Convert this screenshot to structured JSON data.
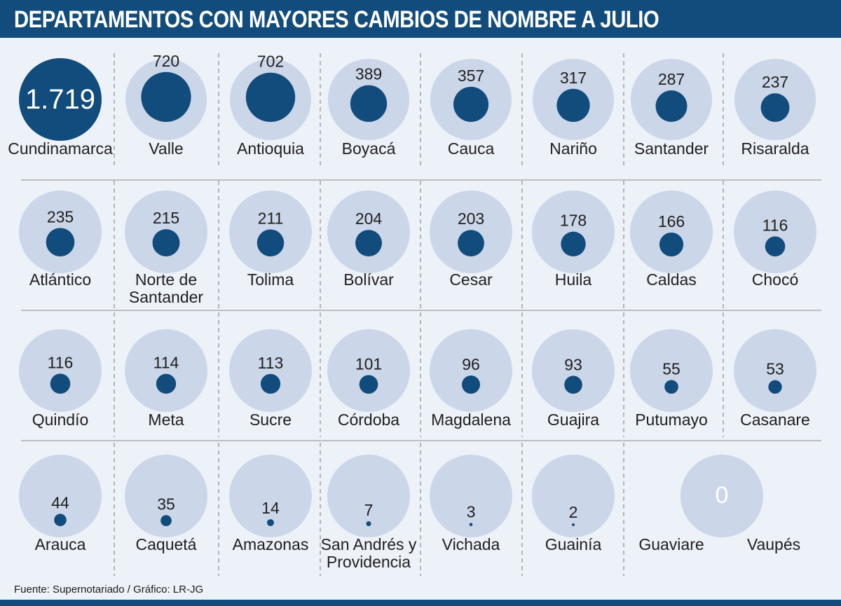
{
  "title": "DEPARTAMENTOS CON MAYORES CAMBIOS DE NOMBRE A JULIO",
  "source": "Fuente: Supernotariado / Gráfico: LR-JG",
  "colors": {
    "bar": "#124c7c",
    "background": "#edf1f8",
    "bubble_bg": "#cbd6e8",
    "bubble_value": "#124c7c"
  },
  "chart_data": {
    "type": "bubble",
    "max_value": 1719,
    "categories": [
      "Cundinamarca",
      "Valle",
      "Antioquia",
      "Boyacá",
      "Cauca",
      "Nariño",
      "Santander",
      "Risaralda",
      "Atlántico",
      "Norte de Santander",
      "Tolima",
      "Bolívar",
      "Cesar",
      "Huila",
      "Caldas",
      "Chocó",
      "Quindío",
      "Meta",
      "Sucre",
      "Córdoba",
      "Magdalena",
      "Guajira",
      "Putumayo",
      "Casanare",
      "Arauca",
      "Caquetá",
      "Amazonas",
      "San Andrés y Providencia",
      "Vichada",
      "Guainía",
      "Guaviare",
      "Vaupés"
    ],
    "values": [
      1719,
      720,
      702,
      389,
      357,
      317,
      287,
      237,
      235,
      215,
      211,
      204,
      203,
      178,
      166,
      116,
      116,
      114,
      113,
      101,
      96,
      93,
      55,
      53,
      44,
      35,
      14,
      7,
      3,
      2,
      0,
      0
    ],
    "value_labels": [
      "1.719",
      "720",
      "702",
      "389",
      "357",
      "317",
      "287",
      "237",
      "235",
      "215",
      "211",
      "204",
      "203",
      "178",
      "166",
      "116",
      "116",
      "114",
      "113",
      "101",
      "96",
      "93",
      "55",
      "53",
      "44",
      "35",
      "14",
      "7",
      "3",
      "2",
      "0",
      "0"
    ]
  }
}
